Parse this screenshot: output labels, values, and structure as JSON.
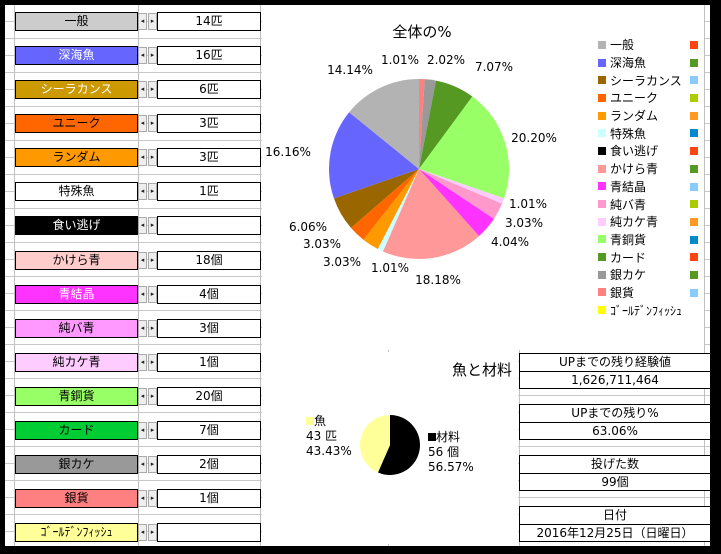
{
  "items": [
    {
      "label": "一般",
      "value": "14匹",
      "bg": "#cccccc",
      "fg": "#000"
    },
    {
      "label": "深海魚",
      "value": "16匹",
      "bg": "#6666ff",
      "fg": "#fff"
    },
    {
      "label": "シーラカンス",
      "value": "6匹",
      "bg": "#cc9900",
      "fg": "#fff"
    },
    {
      "label": "ユニーク",
      "value": "3匹",
      "bg": "#ff6600",
      "fg": "#000"
    },
    {
      "label": "ランダム",
      "value": "3匹",
      "bg": "#ff9900",
      "fg": "#000"
    },
    {
      "label": "特殊魚",
      "value": "1匹",
      "bg": "#ffffff",
      "fg": "#000"
    },
    {
      "label": "食い逃げ",
      "value": "",
      "bg": "#000000",
      "fg": "#fff"
    },
    {
      "label": "かけら青",
      "value": "18個",
      "bg": "#ffcccc",
      "fg": "#000"
    },
    {
      "label": "青結晶",
      "value": "4個",
      "bg": "#ff33ff",
      "fg": "#fff"
    },
    {
      "label": "純バ青",
      "value": "3個",
      "bg": "#ff99ff",
      "fg": "#000"
    },
    {
      "label": "純カケ青",
      "value": "1個",
      "bg": "#ffccff",
      "fg": "#000"
    },
    {
      "label": "青銅貨",
      "value": "20個",
      "bg": "#99ff66",
      "fg": "#000"
    },
    {
      "label": "カード",
      "value": "7個",
      "bg": "#00cc33",
      "fg": "#000"
    },
    {
      "label": "銀カケ",
      "value": "2個",
      "bg": "#999999",
      "fg": "#000"
    },
    {
      "label": "銀貨",
      "value": "1個",
      "bg": "#ff8080",
      "fg": "#000"
    },
    {
      "label": "ｺﾞｰﾙﾃﾞﾝﾌｨｯｼｭ",
      "value": "",
      "bg": "#ffff99",
      "fg": "#000"
    }
  ],
  "chart_data": [
    {
      "type": "pie",
      "title": "全体の%",
      "slices": [
        {
          "name": "銀貨",
          "value": 1.01,
          "label": "1.01%",
          "color": "#ff8080"
        },
        {
          "name": "銀カケ",
          "value": 2.02,
          "label": "2.02%",
          "color": "#999999"
        },
        {
          "name": "カード",
          "value": 7.07,
          "label": "7.07%",
          "color": "#559922"
        },
        {
          "name": "青銅貨",
          "value": 20.2,
          "label": "20.20%",
          "color": "#99ff66"
        },
        {
          "name": "純カケ青",
          "value": 1.01,
          "label": "1.01%",
          "color": "#ffccff"
        },
        {
          "name": "純バ青",
          "value": 3.03,
          "label": "3.03%",
          "color": "#ff99cc"
        },
        {
          "name": "青結晶",
          "value": 4.04,
          "label": "4.04%",
          "color": "#ff33ff"
        },
        {
          "name": "かけら青",
          "value": 18.18,
          "label": "18.18%",
          "color": "#ff9999"
        },
        {
          "name": "特殊魚",
          "value": 1.01,
          "label": "1.01%",
          "color": "#ccffff"
        },
        {
          "name": "ランダム",
          "value": 3.03,
          "label": "3.03%",
          "color": "#ff9900"
        },
        {
          "name": "ユニーク",
          "value": 3.03,
          "label": "3.03%",
          "color": "#ff6600"
        },
        {
          "name": "シーラカンス",
          "value": 6.06,
          "label": "6.06%",
          "color": "#996600"
        },
        {
          "name": "深海魚",
          "value": 16.16,
          "label": "16.16%",
          "color": "#6666ff"
        },
        {
          "name": "一般",
          "value": 14.14,
          "label": "14.14%",
          "color": "#b3b3b3"
        }
      ],
      "legend": [
        {
          "name": "一般",
          "color": "#b3b3b3",
          "color2": "#ff4411"
        },
        {
          "name": "深海魚",
          "color": "#6666ff",
          "color2": "#559922"
        },
        {
          "name": "シーラカンス",
          "color": "#996600",
          "color2": "#88ccff"
        },
        {
          "name": "ユニーク",
          "color": "#ff6600",
          "color2": "#aacc00"
        },
        {
          "name": "ランダム",
          "color": "#ff9900",
          "color2": "#ff9922"
        },
        {
          "name": "特殊魚",
          "color": "#ccffff",
          "color2": "#0088cc"
        },
        {
          "name": "食い逃げ",
          "color": "#000000",
          "color2": "#ff4411"
        },
        {
          "name": "かけら青",
          "color": "#ff9999",
          "color2": "#559922"
        },
        {
          "name": "青結晶",
          "color": "#ff33ff",
          "color2": "#88ccff"
        },
        {
          "name": "純バ青",
          "color": "#ff99cc",
          "color2": "#aacc00"
        },
        {
          "name": "純カケ青",
          "color": "#ffccff",
          "color2": "#ff9922"
        },
        {
          "name": "青銅貨",
          "color": "#99ff66",
          "color2": "#0088cc"
        },
        {
          "name": "カード",
          "color": "#559922",
          "color2": "#ff4411"
        },
        {
          "name": "銀カケ",
          "color": "#999999",
          "color2": "#559922"
        },
        {
          "name": "銀貨",
          "color": "#ff8080",
          "color2": "#88ccff"
        },
        {
          "name": "ｺﾞｰﾙﾃﾞﾝﾌｨｯｼｭ",
          "color": "#ffff00",
          "color2": ""
        }
      ],
      "legend_position": "right"
    },
    {
      "type": "pie",
      "title": "魚と材料",
      "slices": [
        {
          "name": "材料",
          "value": 56.57,
          "count": "56 個",
          "label": "56.57%",
          "color": "#000000"
        },
        {
          "name": "魚",
          "value": 43.43,
          "count": "43 匹",
          "label": "43.43%",
          "color": "#ffff99"
        }
      ]
    }
  ],
  "stats": [
    {
      "label": "UPまでの残り経験値",
      "value": "1,626,711,464"
    },
    {
      "label": "UPまでの残り%",
      "value": "63.06%"
    },
    {
      "label": "投げた数",
      "value": "99個"
    },
    {
      "label": "日付",
      "value": "2016年12月25日（日曜日）"
    }
  ]
}
